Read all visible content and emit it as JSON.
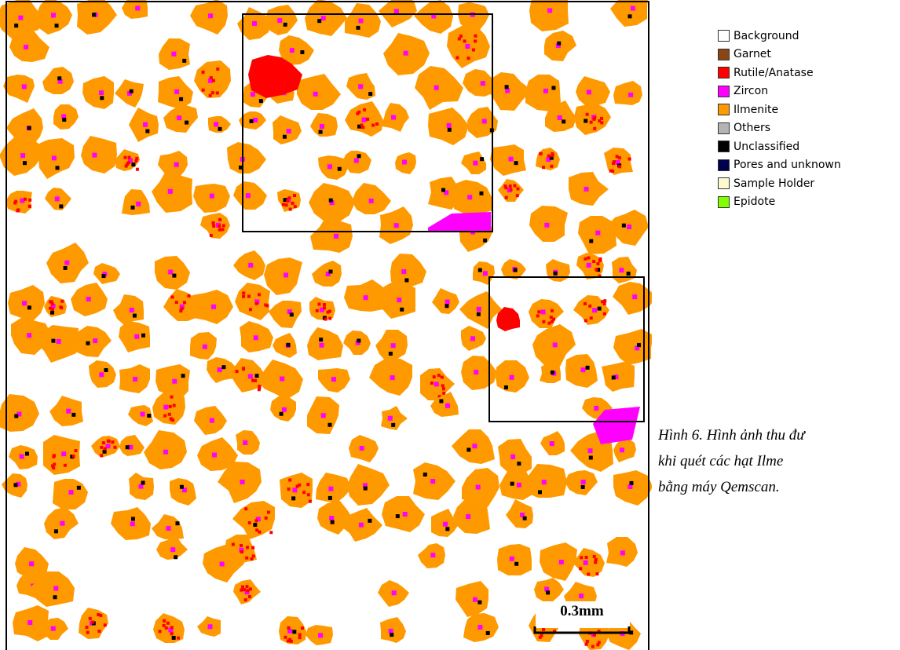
{
  "legend": {
    "items": [
      {
        "label": "Background",
        "color": "#ffffff"
      },
      {
        "label": "Garnet",
        "color": "#8b4513"
      },
      {
        "label": "Rutile/Anatase",
        "color": "#ff0000"
      },
      {
        "label": "Zircon",
        "color": "#ff00ff"
      },
      {
        "label": "Ilmenite",
        "color": "#ff9900"
      },
      {
        "label": "Others",
        "color": "#b4b4b4"
      },
      {
        "label": "Unclassified",
        "color": "#000000"
      },
      {
        "label": "Pores and unknown",
        "color": "#000050"
      },
      {
        "label": "Sample Holder",
        "color": "#fffacd"
      },
      {
        "label": "Epidote",
        "color": "#80ff00"
      }
    ]
  },
  "scale_bar": "0.3mm",
  "caption": {
    "lines": [
      "Hình 6. Hình ảnh thu đư",
      "khi quét các hạt Ilme",
      "bằng máy Qemscan."
    ]
  }
}
